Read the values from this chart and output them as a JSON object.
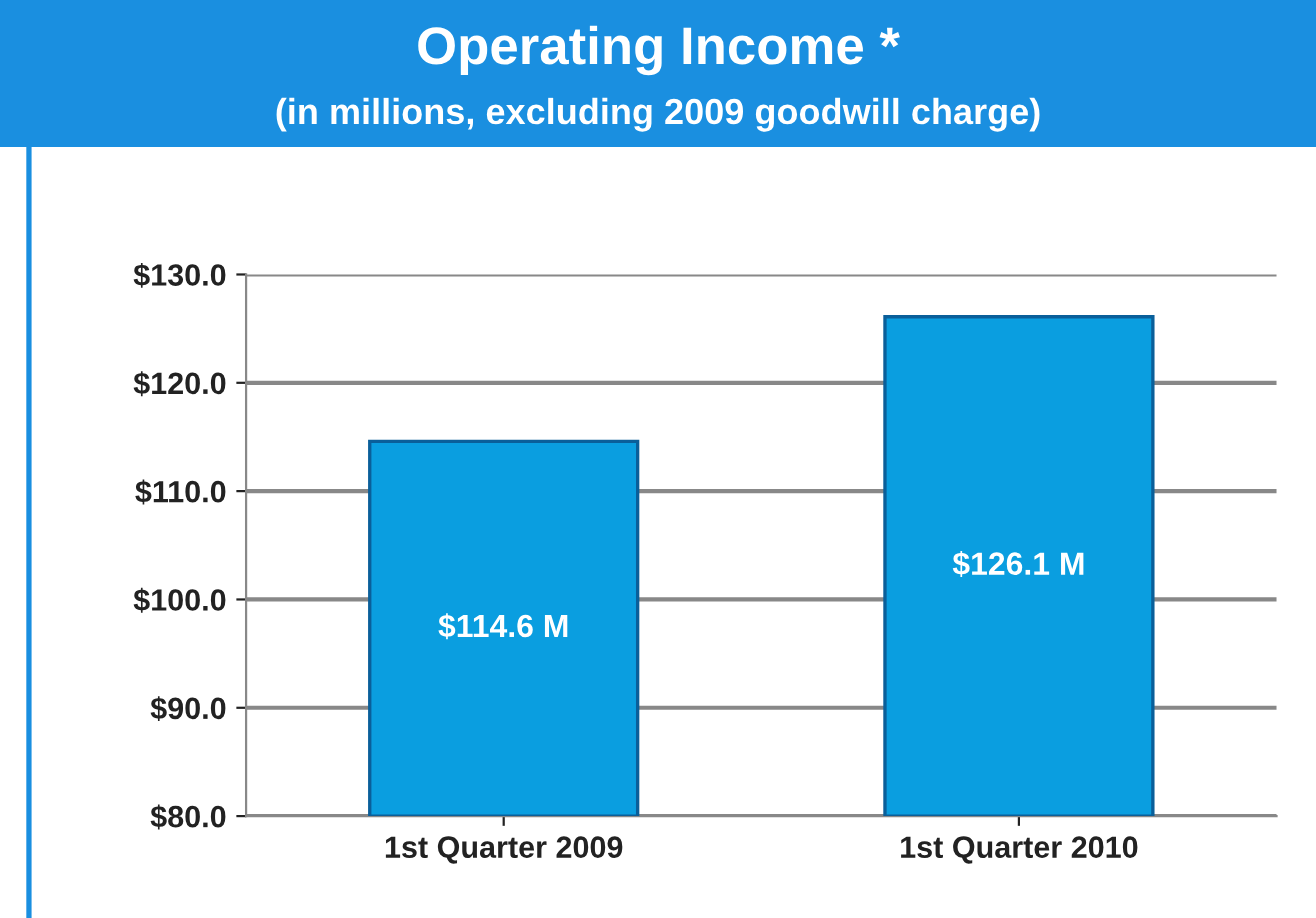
{
  "chart_data": {
    "type": "bar",
    "title": "Operating Income *",
    "subtitle": "(in millions, excluding 2009 goodwill charge)",
    "categories": [
      "1st Quarter 2009",
      "1st Quarter 2010"
    ],
    "values": [
      114.6,
      126.1
    ],
    "value_labels": [
      "$114.6 M",
      "$126.1 M"
    ],
    "color": "#0a9ee0",
    "ylim": [
      80,
      130
    ],
    "yticks": [
      {
        "value": 80,
        "label": "$80.0"
      },
      {
        "value": 90,
        "label": "$90.0"
      },
      {
        "value": 100,
        "label": "$100.0"
      },
      {
        "value": 110,
        "label": "$110.0"
      },
      {
        "value": 120,
        "label": "$120.0"
      },
      {
        "value": 130,
        "label": "$130.0"
      }
    ],
    "grid": "y",
    "legend": false
  }
}
